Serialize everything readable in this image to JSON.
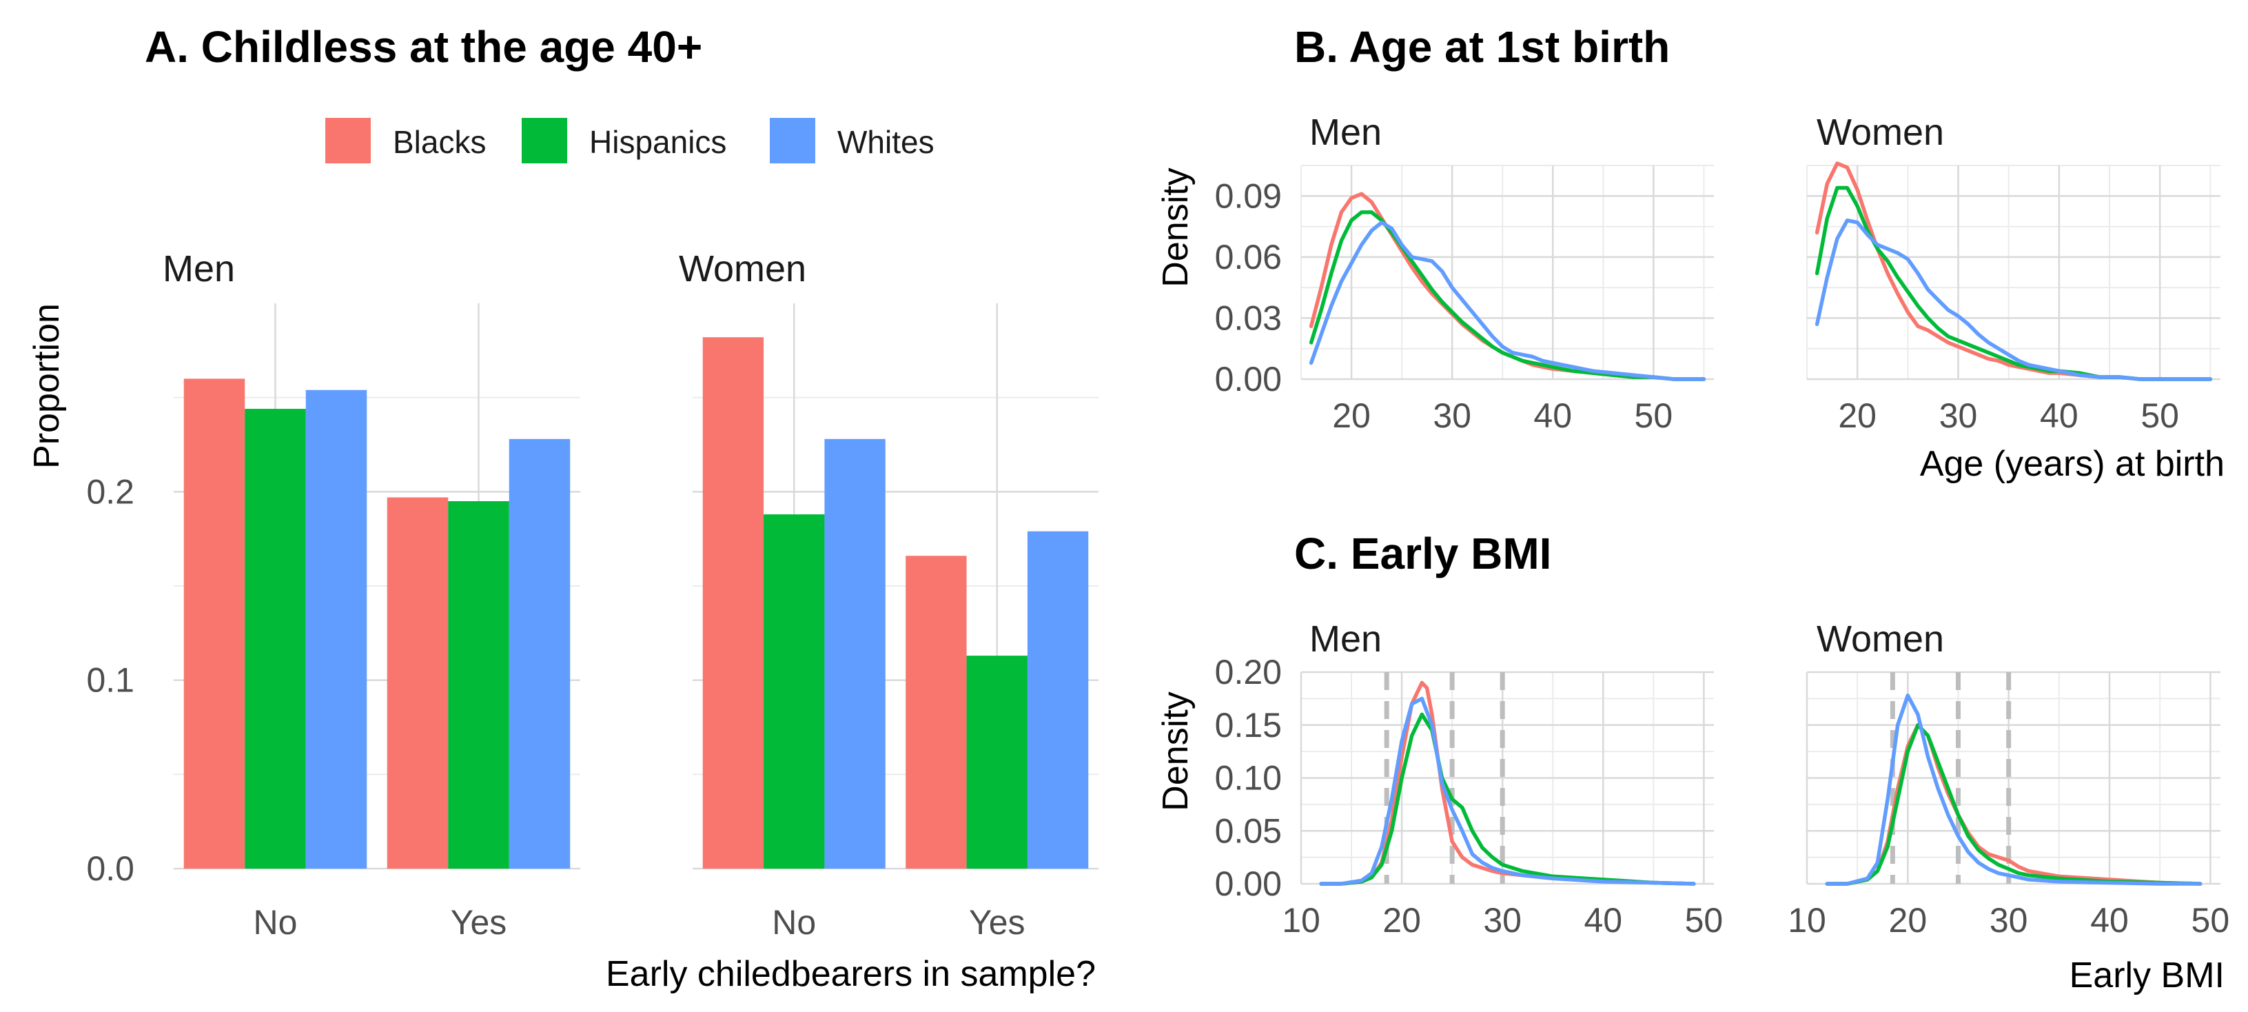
{
  "colors": {
    "Blacks": "#F8766D",
    "Hispanics": "#00BA38",
    "Whites": "#619CFF",
    "cutoff": "#bdbdbd"
  },
  "legend": {
    "labels": [
      "Blacks",
      "Hispanics",
      "Whites"
    ],
    "placement": "top"
  },
  "chart_data": [
    {
      "id": "A",
      "type": "bar",
      "title": "A. Childless at the age 40+",
      "xlabel": "Early chiledbearers in sample?",
      "ylabel": "Proportion",
      "ylim": [
        0,
        0.3
      ],
      "yticks": [
        0.0,
        0.1,
        0.2
      ],
      "ytick_labels": [
        "0.0",
        "0.1",
        "0.2"
      ],
      "categories": [
        "No",
        "Yes"
      ],
      "grid": true,
      "legend_placement": "top",
      "facets": [
        {
          "label": "Men",
          "series": [
            {
              "name": "Blacks",
              "values": [
                0.26,
                0.197
              ]
            },
            {
              "name": "Hispanics",
              "values": [
                0.244,
                0.195
              ]
            },
            {
              "name": "Whites",
              "values": [
                0.254,
                0.228
              ]
            }
          ]
        },
        {
          "label": "Women",
          "series": [
            {
              "name": "Blacks",
              "values": [
                0.282,
                0.166
              ]
            },
            {
              "name": "Hispanics",
              "values": [
                0.188,
                0.113
              ]
            },
            {
              "name": "Whites",
              "values": [
                0.228,
                0.179
              ]
            }
          ]
        }
      ]
    },
    {
      "id": "B",
      "type": "line",
      "title": "B. Age at 1st birth",
      "xlabel": "Age (years) at birth",
      "ylabel": "Density",
      "xlim": [
        15,
        56
      ],
      "ylim": [
        0,
        0.105
      ],
      "xticks": [
        20,
        30,
        40,
        50
      ],
      "xtick_labels": [
        "20",
        "30",
        "40",
        "50"
      ],
      "yticks": [
        0,
        0.03,
        0.06,
        0.09
      ],
      "ytick_labels": [
        "0.00",
        "0.03",
        "0.06",
        "0.09"
      ],
      "grid": true,
      "facets": [
        {
          "label": "Men",
          "series": [
            {
              "name": "Blacks",
              "x": [
                16,
                17,
                18,
                19,
                20,
                21,
                22,
                23,
                24,
                25,
                26,
                27,
                28,
                29,
                30,
                31,
                32,
                33,
                34,
                35,
                36,
                37,
                38,
                39,
                40,
                42,
                44,
                46,
                48,
                50,
                52,
                55
              ],
              "y": [
                0.026,
                0.045,
                0.066,
                0.082,
                0.089,
                0.091,
                0.087,
                0.079,
                0.071,
                0.063,
                0.055,
                0.048,
                0.042,
                0.037,
                0.032,
                0.027,
                0.023,
                0.019,
                0.016,
                0.013,
                0.011,
                0.009,
                0.007,
                0.006,
                0.005,
                0.004,
                0.003,
                0.002,
                0.001,
                0.001,
                0,
                0
              ]
            },
            {
              "name": "Hispanics",
              "x": [
                16,
                17,
                18,
                19,
                20,
                21,
                22,
                23,
                24,
                25,
                26,
                27,
                28,
                29,
                30,
                31,
                32,
                33,
                34,
                35,
                36,
                37,
                38,
                39,
                40,
                42,
                44,
                46,
                48,
                50,
                52,
                55
              ],
              "y": [
                0.018,
                0.034,
                0.052,
                0.068,
                0.078,
                0.082,
                0.082,
                0.078,
                0.072,
                0.065,
                0.058,
                0.051,
                0.044,
                0.038,
                0.033,
                0.028,
                0.024,
                0.02,
                0.016,
                0.013,
                0.011,
                0.009,
                0.008,
                0.007,
                0.006,
                0.004,
                0.003,
                0.002,
                0.001,
                0.001,
                0,
                0
              ]
            },
            {
              "name": "Whites",
              "x": [
                16,
                17,
                18,
                19,
                20,
                21,
                22,
                23,
                24,
                25,
                26,
                27,
                28,
                29,
                30,
                31,
                32,
                33,
                34,
                35,
                36,
                37,
                38,
                39,
                40,
                42,
                44,
                46,
                48,
                50,
                52,
                55
              ],
              "y": [
                0.008,
                0.022,
                0.036,
                0.048,
                0.057,
                0.066,
                0.073,
                0.077,
                0.074,
                0.066,
                0.06,
                0.059,
                0.058,
                0.053,
                0.045,
                0.039,
                0.033,
                0.027,
                0.021,
                0.016,
                0.013,
                0.012,
                0.011,
                0.009,
                0.008,
                0.006,
                0.004,
                0.003,
                0.002,
                0.001,
                0,
                0
              ]
            }
          ]
        },
        {
          "label": "Women",
          "series": [
            {
              "name": "Blacks",
              "x": [
                16,
                17,
                18,
                19,
                20,
                21,
                22,
                23,
                24,
                25,
                26,
                27,
                28,
                29,
                30,
                31,
                32,
                33,
                34,
                35,
                36,
                37,
                38,
                39,
                40,
                42,
                44,
                46,
                48,
                50,
                52,
                55
              ],
              "y": [
                0.072,
                0.096,
                0.106,
                0.104,
                0.093,
                0.078,
                0.064,
                0.052,
                0.042,
                0.033,
                0.026,
                0.024,
                0.021,
                0.018,
                0.016,
                0.014,
                0.012,
                0.01,
                0.009,
                0.007,
                0.006,
                0.005,
                0.004,
                0.003,
                0.003,
                0.002,
                0.001,
                0.001,
                0,
                0,
                0,
                0
              ]
            },
            {
              "name": "Hispanics",
              "x": [
                16,
                17,
                18,
                19,
                20,
                21,
                22,
                23,
                24,
                25,
                26,
                27,
                28,
                29,
                30,
                31,
                32,
                33,
                34,
                35,
                36,
                37,
                38,
                39,
                40,
                42,
                44,
                46,
                48,
                50,
                52,
                55
              ],
              "y": [
                0.052,
                0.079,
                0.094,
                0.094,
                0.085,
                0.073,
                0.064,
                0.058,
                0.05,
                0.043,
                0.036,
                0.03,
                0.025,
                0.021,
                0.019,
                0.017,
                0.015,
                0.013,
                0.011,
                0.009,
                0.007,
                0.006,
                0.005,
                0.004,
                0.004,
                0.003,
                0.001,
                0.001,
                0,
                0,
                0,
                0
              ]
            },
            {
              "name": "Whites",
              "x": [
                16,
                17,
                18,
                19,
                20,
                21,
                22,
                23,
                24,
                25,
                26,
                27,
                28,
                29,
                30,
                31,
                32,
                33,
                34,
                35,
                36,
                37,
                38,
                39,
                40,
                42,
                44,
                46,
                48,
                50,
                52,
                55
              ],
              "y": [
                0.027,
                0.05,
                0.069,
                0.078,
                0.077,
                0.071,
                0.066,
                0.064,
                0.062,
                0.059,
                0.052,
                0.044,
                0.039,
                0.034,
                0.031,
                0.027,
                0.022,
                0.018,
                0.015,
                0.012,
                0.009,
                0.007,
                0.006,
                0.005,
                0.004,
                0.002,
                0.001,
                0.001,
                0,
                0,
                0,
                0
              ]
            }
          ]
        }
      ]
    },
    {
      "id": "C",
      "type": "line",
      "title": "C. Early BMI",
      "xlabel": "Early BMI",
      "ylabel": "Density",
      "xlim": [
        10,
        51
      ],
      "ylim": [
        0,
        0.2
      ],
      "xticks": [
        10,
        20,
        30,
        40,
        50
      ],
      "xtick_labels": [
        "10",
        "20",
        "30",
        "40",
        "50"
      ],
      "yticks": [
        0,
        0.05,
        0.1,
        0.15,
        0.2
      ],
      "ytick_labels": [
        "0.00",
        "0.05",
        "0.10",
        "0.15",
        "0.20"
      ],
      "reference_lines_x": [
        18.5,
        25,
        30
      ],
      "grid": true,
      "facets": [
        {
          "label": "Men",
          "series": [
            {
              "name": "Blacks",
              "x": [
                12,
                14,
                16,
                17,
                18,
                19,
                20,
                21,
                22,
                22.5,
                23,
                24,
                25,
                26,
                27,
                28,
                29,
                30,
                32,
                35,
                40,
                45,
                49
              ],
              "y": [
                0,
                0,
                0.002,
                0.006,
                0.02,
                0.06,
                0.12,
                0.17,
                0.19,
                0.185,
                0.16,
                0.09,
                0.04,
                0.025,
                0.018,
                0.015,
                0.012,
                0.01,
                0.008,
                0.005,
                0.003,
                0.001,
                0
              ]
            },
            {
              "name": "Hispanics",
              "x": [
                12,
                14,
                16,
                17,
                18,
                19,
                20,
                21,
                22,
                23,
                24,
                25,
                26,
                27,
                28,
                29,
                30,
                32,
                35,
                40,
                45,
                49
              ],
              "y": [
                0,
                0,
                0.002,
                0.006,
                0.018,
                0.05,
                0.1,
                0.14,
                0.16,
                0.145,
                0.1,
                0.08,
                0.072,
                0.05,
                0.034,
                0.025,
                0.018,
                0.012,
                0.007,
                0.004,
                0.001,
                0
              ]
            },
            {
              "name": "Whites",
              "x": [
                12,
                14,
                16,
                17,
                18,
                19,
                20,
                21,
                22,
                23,
                24,
                25,
                26,
                27,
                28,
                29,
                30,
                32,
                35,
                40,
                45,
                49
              ],
              "y": [
                0,
                0,
                0.003,
                0.01,
                0.035,
                0.08,
                0.135,
                0.17,
                0.175,
                0.15,
                0.095,
                0.07,
                0.05,
                0.028,
                0.02,
                0.015,
                0.012,
                0.008,
                0.005,
                0.002,
                0.001,
                0
              ]
            }
          ]
        },
        {
          "label": "Women",
          "series": [
            {
              "name": "Blacks",
              "x": [
                12,
                14,
                16,
                17,
                18,
                19,
                20,
                21,
                22,
                23,
                24,
                25,
                26,
                27,
                28,
                29,
                30,
                31,
                32,
                35,
                40,
                45,
                49
              ],
              "y": [
                0,
                0,
                0.004,
                0.012,
                0.04,
                0.09,
                0.13,
                0.15,
                0.14,
                0.11,
                0.085,
                0.065,
                0.048,
                0.035,
                0.028,
                0.025,
                0.022,
                0.016,
                0.012,
                0.007,
                0.004,
                0.001,
                0
              ]
            },
            {
              "name": "Hispanics",
              "x": [
                12,
                14,
                16,
                17,
                18,
                19,
                20,
                21,
                22,
                23,
                24,
                25,
                26,
                27,
                28,
                29,
                30,
                31,
                32,
                35,
                40,
                45,
                49
              ],
              "y": [
                0,
                0,
                0.004,
                0.012,
                0.035,
                0.08,
                0.125,
                0.15,
                0.14,
                0.115,
                0.09,
                0.065,
                0.045,
                0.032,
                0.024,
                0.018,
                0.014,
                0.01,
                0.008,
                0.005,
                0.002,
                0.001,
                0
              ]
            },
            {
              "name": "Whites",
              "x": [
                12,
                14,
                16,
                17,
                18,
                19,
                20,
                21,
                22,
                23,
                24,
                25,
                26,
                27,
                28,
                29,
                30,
                31,
                32,
                35,
                40,
                45,
                49
              ],
              "y": [
                0,
                0,
                0.005,
                0.02,
                0.08,
                0.15,
                0.178,
                0.16,
                0.12,
                0.09,
                0.065,
                0.045,
                0.03,
                0.02,
                0.014,
                0.01,
                0.008,
                0.006,
                0.004,
                0.002,
                0.001,
                0,
                0
              ]
            }
          ]
        }
      ]
    }
  ]
}
